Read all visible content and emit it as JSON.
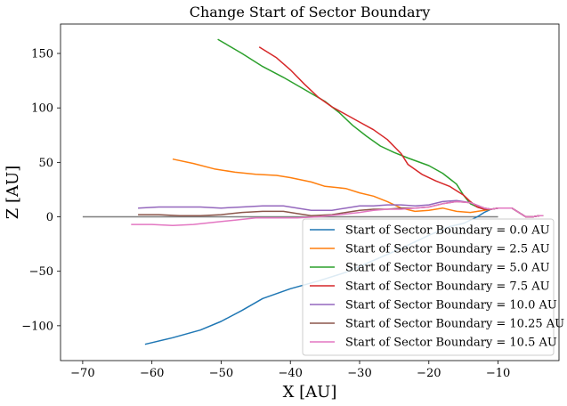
{
  "chart_data": {
    "type": "line",
    "title": "Change Start of Sector Boundary",
    "xlabel": "X [AU]",
    "ylabel": "Z [AU]",
    "xlim": [
      -73.2,
      -1.2
    ],
    "ylim": [
      -132,
      177
    ],
    "xticks": [
      -70,
      -60,
      -50,
      -40,
      -30,
      -20,
      -10
    ],
    "xtick_labels": [
      "−70",
      "−60",
      "−50",
      "−40",
      "−30",
      "−20",
      "−10"
    ],
    "yticks": [
      -100,
      -50,
      0,
      50,
      100,
      150
    ],
    "ytick_labels": [
      "−100",
      "−50",
      "0",
      "50",
      "100",
      "150"
    ],
    "grid": false,
    "legend_position": "lower-right",
    "reference_line": {
      "color": "#7f7f7f",
      "x": [
        -70,
        -10
      ],
      "y": [
        0,
        0
      ]
    },
    "series": [
      {
        "name": "Start of Sector Boundary = 0.0 AU",
        "color": "#1f77b4",
        "x": [
          -61,
          -57,
          -53,
          -50,
          -47,
          -44,
          -40,
          -36,
          -32,
          -28,
          -24,
          -20,
          -17,
          -15,
          -13,
          -12,
          -11,
          -10,
          -9,
          -8,
          -7,
          -6,
          -5,
          -4,
          -3.5
        ],
        "y": [
          -117,
          -111,
          -104,
          -96,
          -86,
          -75,
          -66,
          -59,
          -51,
          -40,
          -29,
          -17,
          -9,
          -6,
          0,
          4,
          7,
          8,
          8,
          8,
          4,
          0,
          0,
          1,
          1
        ]
      },
      {
        "name": "Start of Sector Boundary = 2.5 AU",
        "color": "#ff7f0e",
        "x": [
          -57,
          -54,
          -51,
          -48,
          -45,
          -42,
          -40,
          -37,
          -35,
          -32,
          -30,
          -28,
          -26,
          -24,
          -22,
          -20,
          -18,
          -16,
          -14,
          -12,
          -11,
          -10,
          -9,
          -8,
          -7,
          -6,
          -5,
          -4,
          -3.5
        ],
        "y": [
          53,
          49,
          44,
          41,
          39,
          38,
          36,
          32,
          28,
          26,
          22,
          19,
          14,
          8,
          5,
          6,
          8,
          5,
          4,
          6,
          7,
          8,
          8,
          8,
          4,
          0,
          0,
          1,
          1
        ]
      },
      {
        "name": "Start of Sector Boundary = 5.0 AU",
        "color": "#2ca02c",
        "x": [
          -50.5,
          -47,
          -44,
          -41,
          -38,
          -35,
          -33,
          -31,
          -29,
          -27,
          -25,
          -23,
          -20,
          -18,
          -16,
          -15,
          -14,
          -13,
          -12,
          -11,
          -10,
          -9,
          -8,
          -7,
          -6,
          -5,
          -4,
          -3.5
        ],
        "y": [
          163,
          150,
          138,
          128,
          117,
          106,
          96,
          84,
          74,
          65,
          59,
          54,
          47,
          40,
          30,
          20,
          12,
          9,
          7,
          7,
          8,
          8,
          8,
          4,
          0,
          0,
          1,
          1
        ]
      },
      {
        "name": "Start of Sector Boundary = 7.5 AU",
        "color": "#d62728",
        "x": [
          -44.5,
          -42,
          -40,
          -38,
          -36,
          -34,
          -32,
          -30,
          -28,
          -26,
          -24,
          -23,
          -21,
          -19,
          -17,
          -15,
          -14,
          -13,
          -12,
          -11,
          -10,
          -9,
          -8,
          -7,
          -6,
          -5,
          -4,
          -3.5
        ],
        "y": [
          156,
          146,
          135,
          122,
          110,
          101,
          94,
          87,
          80,
          71,
          58,
          48,
          39,
          33,
          28,
          20,
          14,
          9,
          7,
          7,
          8,
          8,
          8,
          4,
          0,
          0,
          1,
          1
        ]
      },
      {
        "name": "Start of Sector Boundary = 10.0 AU",
        "color": "#9467bd",
        "x": [
          -62,
          -59,
          -56,
          -53,
          -50,
          -47,
          -44,
          -41,
          -39,
          -37,
          -34,
          -32,
          -30,
          -28,
          -26,
          -24,
          -22,
          -20,
          -18,
          -16,
          -14,
          -12,
          -11,
          -10,
          -9,
          -8,
          -7,
          -6,
          -5,
          -4,
          -3.5
        ],
        "y": [
          8,
          9,
          9,
          9,
          8,
          9,
          10,
          10,
          8,
          6,
          6,
          8,
          10,
          10,
          11,
          11,
          10,
          11,
          14,
          15,
          13,
          8,
          7,
          8,
          8,
          8,
          4,
          0,
          0,
          1,
          1
        ]
      },
      {
        "name": "Start of Sector Boundary = 10.25 AU",
        "color": "#8c564b",
        "x": [
          -62,
          -59,
          -56,
          -53,
          -50,
          -47,
          -44,
          -41,
          -39,
          -37,
          -34,
          -32,
          -30,
          -28,
          -26,
          -24,
          -22,
          -20,
          -18,
          -16,
          -14,
          -12,
          -11,
          -10,
          -9,
          -8,
          -7,
          -6,
          -5,
          -4,
          -3.5
        ],
        "y": [
          2,
          2,
          1,
          1,
          2,
          4,
          5,
          5,
          3,
          1,
          2,
          4,
          6,
          7,
          7,
          8,
          8,
          9,
          12,
          14,
          13,
          8,
          7,
          8,
          8,
          8,
          4,
          0,
          0,
          1,
          1
        ]
      },
      {
        "name": "Start of Sector Boundary = 10.5 AU",
        "color": "#e377c2",
        "x": [
          -63,
          -60,
          -57,
          -54,
          -51,
          -48,
          -45,
          -42,
          -39,
          -36,
          -33,
          -30,
          -28,
          -26,
          -24,
          -22,
          -20,
          -18,
          -16,
          -14,
          -12,
          -11,
          -10,
          -9,
          -8,
          -7,
          -6,
          -5,
          -4,
          -3.5
        ],
        "y": [
          -7,
          -7,
          -8,
          -7,
          -5,
          -3,
          -1,
          -1,
          -1,
          0,
          2,
          4,
          6,
          7,
          7,
          8,
          9,
          12,
          14,
          13,
          8,
          7,
          8,
          8,
          8,
          4,
          0,
          0,
          1,
          1
        ]
      }
    ]
  }
}
